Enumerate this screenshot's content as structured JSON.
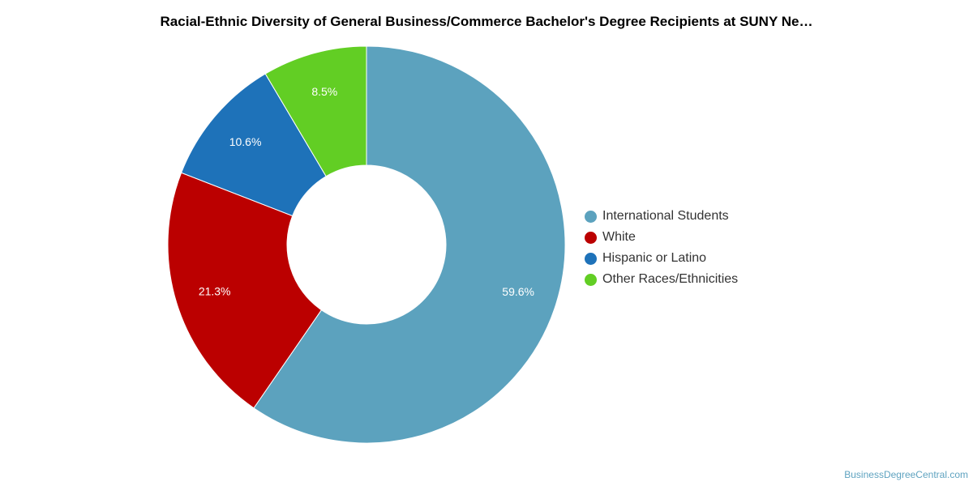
{
  "chart_data": {
    "type": "pie",
    "variant": "donut",
    "title": "Racial-Ethnic Diversity of General Business/Commerce Bachelor's Degree Recipients at SUNY Ne…",
    "categories": [
      "International Students",
      "White",
      "Hispanic or Latino",
      "Other Races/Ethnicities"
    ],
    "values": [
      59.6,
      21.3,
      10.6,
      8.5
    ],
    "labels": [
      "59.6%",
      "21.3%",
      "10.6%",
      "8.5%"
    ],
    "colors": [
      "#5ca2be",
      "#bb0000",
      "#1e72b9",
      "#62ce24"
    ],
    "legend_position": "right"
  },
  "source": "BusinessDegreeCentral.com"
}
